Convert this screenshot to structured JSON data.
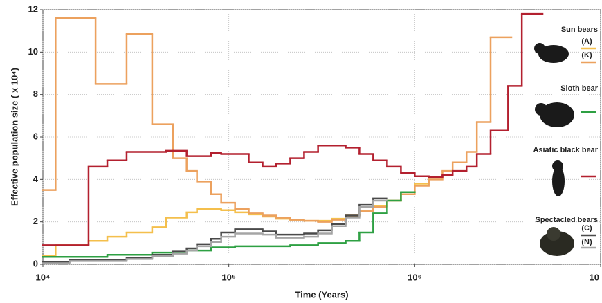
{
  "chart_data": {
    "type": "step",
    "x_label": "Time (Years)",
    "y_label": "Effective population size ( x 10⁴)",
    "xscale": "log",
    "grid": true,
    "xlim": [
      10000,
      10000000
    ],
    "xticks": [
      {
        "value": 10000,
        "label": "10⁴"
      },
      {
        "value": 100000,
        "label": "10⁵"
      },
      {
        "value": 1000000,
        "label": "10⁶"
      },
      {
        "value": 10000000,
        "label": "10"
      }
    ],
    "ylim": [
      0,
      12
    ],
    "yticks": [
      0,
      2,
      4,
      6,
      8,
      10,
      12
    ],
    "legend_groups": [
      "Sun bears",
      "Spectacled bears"
    ],
    "series": [
      {
        "name": "(A)",
        "color": "#f4bf4c",
        "edges": [
          10000,
          11700,
          17600,
          22200,
          28200,
          38700,
          45900,
          59300,
          67400,
          91000,
          108000,
          128000,
          152000,
          180000,
          214000,
          254000,
          358000,
          425000,
          504000,
          598000,
          710000,
          843000,
          1000000,
          1190000,
          1410000
        ],
        "values": [
          0.4,
          0.9,
          1.1,
          1.3,
          1.5,
          1.75,
          2.2,
          2.45,
          2.6,
          2.55,
          2.45,
          2.35,
          2.25,
          2.15,
          2.1,
          2.05,
          2.15,
          2.3,
          2.5,
          2.75,
          3.0,
          3.4,
          3.8,
          4.1
        ]
      },
      {
        "name": "(K)",
        "color": "#eca15e",
        "edges": [
          10000,
          11700,
          19200,
          28200,
          38700,
          50000,
          59300,
          67400,
          80100,
          91000,
          108000,
          128000,
          152000,
          180000,
          214000,
          254000,
          302000,
          358000,
          425000,
          504000,
          598000,
          710000,
          843000,
          1000000,
          1190000,
          1410000,
          1600000,
          1900000,
          2160000,
          2560000,
          3310000
        ],
        "values": [
          3.5,
          11.6,
          8.5,
          10.85,
          6.6,
          5.0,
          4.4,
          3.9,
          3.3,
          2.9,
          2.6,
          2.4,
          2.3,
          2.2,
          2.1,
          2.05,
          2.0,
          2.1,
          2.3,
          2.5,
          2.7,
          3.0,
          3.3,
          3.7,
          4.0,
          4.4,
          4.8,
          5.3,
          6.7,
          10.7
        ]
      },
      {
        "name": "Sloth bear",
        "color": "#2ea043",
        "edges": [
          10000,
          22200,
          38700,
          59300,
          80100,
          108000,
          214000,
          302000,
          425000,
          504000,
          598000,
          710000,
          843000,
          1000000
        ],
        "values": [
          0.35,
          0.45,
          0.55,
          0.65,
          0.8,
          0.85,
          0.9,
          1.0,
          1.1,
          1.5,
          2.4,
          3.0,
          3.4
        ]
      },
      {
        "name": "Asiatic black bear",
        "color": "#b3202f",
        "edges": [
          10000,
          17600,
          22200,
          28200,
          45900,
          59300,
          80100,
          91000,
          128000,
          152000,
          180000,
          214000,
          254000,
          302000,
          425000,
          504000,
          598000,
          710000,
          843000,
          1000000,
          1190000,
          1410000,
          1600000,
          1900000,
          2160000,
          2560000,
          3180000,
          3770000,
          4870000
        ],
        "values": [
          0.9,
          4.6,
          4.9,
          5.3,
          5.35,
          5.1,
          5.25,
          5.2,
          4.8,
          4.6,
          4.75,
          5.0,
          5.3,
          5.6,
          5.5,
          5.2,
          4.9,
          4.6,
          4.3,
          4.15,
          4.1,
          4.2,
          4.4,
          4.6,
          5.2,
          6.3,
          8.4,
          11.8
        ]
      },
      {
        "name": "(C)",
        "color": "#4a4a4a",
        "edges": [
          10000,
          13900,
          28200,
          38700,
          50000,
          59300,
          67400,
          80100,
          91000,
          108000,
          152000,
          180000,
          254000,
          302000,
          358000,
          425000,
          504000,
          598000,
          710000
        ],
        "values": [
          0.1,
          0.2,
          0.3,
          0.45,
          0.6,
          0.75,
          0.95,
          1.2,
          1.5,
          1.65,
          1.55,
          1.4,
          1.45,
          1.6,
          1.9,
          2.3,
          2.8,
          3.1
        ]
      },
      {
        "name": "(N)",
        "color": "#a5a5a5",
        "edges": [
          10000,
          13900,
          28200,
          38700,
          50000,
          59300,
          67400,
          80100,
          91000,
          108000,
          152000,
          180000,
          254000,
          302000,
          358000,
          425000,
          504000,
          598000,
          710000
        ],
        "values": [
          0.05,
          0.15,
          0.25,
          0.4,
          0.5,
          0.65,
          0.85,
          1.05,
          1.3,
          1.45,
          1.4,
          1.25,
          1.3,
          1.45,
          1.8,
          2.2,
          2.7,
          3.0
        ]
      }
    ]
  }
}
